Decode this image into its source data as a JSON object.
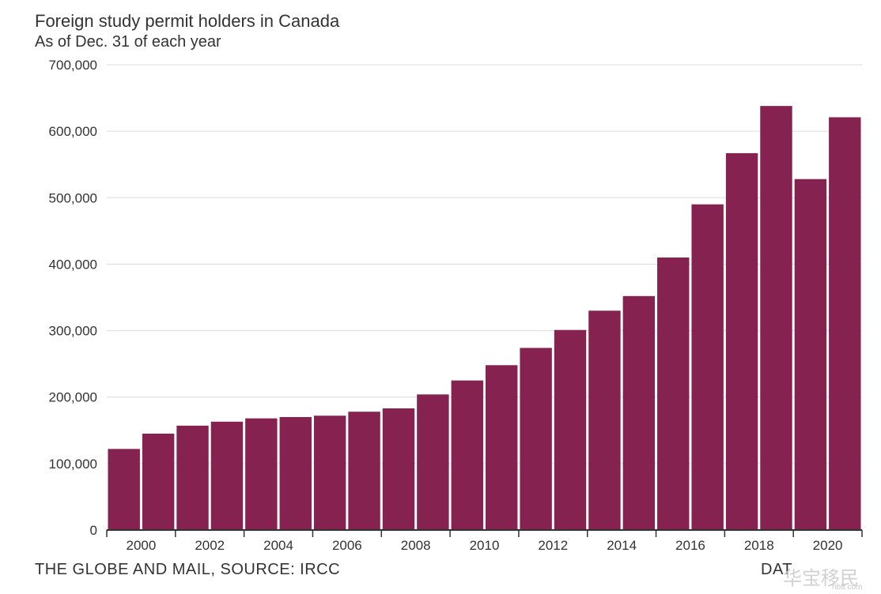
{
  "header": {
    "title": "Foreign study permit holders in Canada",
    "subtitle": "As of Dec. 31 of each year"
  },
  "footer": {
    "credit": "THE GLOBE AND MAIL, SOURCE: IRCC",
    "partial_text": "DAT"
  },
  "watermark": {
    "text": "华宝移民",
    "subtext": "hb8.com"
  },
  "colors": {
    "bar": "#85224f",
    "grid": "#dcdce6",
    "axis": "#333333",
    "text": "#333333"
  },
  "chart_data": {
    "type": "bar",
    "title": "Foreign study permit holders in Canada",
    "subtitle": "As of Dec. 31 of each year",
    "xlabel": "",
    "ylabel": "",
    "categories": [
      "2000",
      "2001",
      "2002",
      "2003",
      "2004",
      "2005",
      "2006",
      "2007",
      "2008",
      "2009",
      "2010",
      "2011",
      "2012",
      "2013",
      "2014",
      "2015",
      "2016",
      "2017",
      "2018",
      "2019",
      "2020",
      "2021"
    ],
    "values": [
      122000,
      145000,
      157000,
      163000,
      168000,
      170000,
      172000,
      178000,
      183000,
      204000,
      225000,
      248000,
      274000,
      301000,
      330000,
      352000,
      410000,
      490000,
      567000,
      638000,
      528000,
      621000
    ],
    "x_tick_labels": [
      "2000",
      "2002",
      "2004",
      "2006",
      "2008",
      "2010",
      "2012",
      "2014",
      "2016",
      "2018",
      "2020"
    ],
    "y_ticks": [
      0,
      100000,
      200000,
      300000,
      400000,
      500000,
      600000,
      700000
    ],
    "y_tick_labels": [
      "0",
      "100,000",
      "200,000",
      "300,000",
      "400,000",
      "500,000",
      "600,000",
      "700,000"
    ],
    "ylim": [
      0,
      700000
    ],
    "grid": true,
    "legend": "none"
  }
}
